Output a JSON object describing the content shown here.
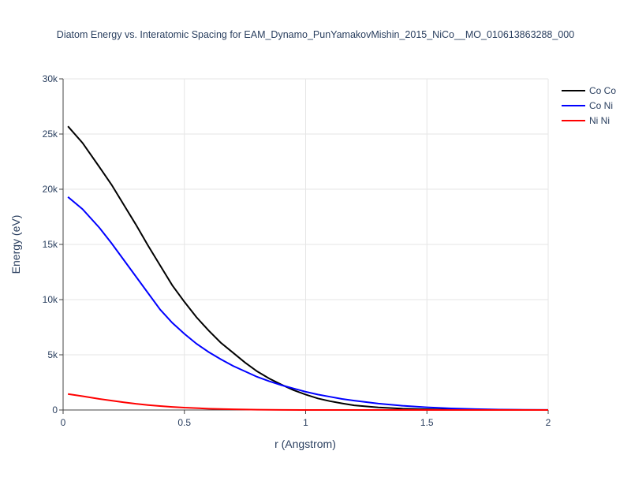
{
  "chart_data": {
    "type": "line",
    "title": "Diatom Energy vs. Interatomic Spacing for EAM_Dynamo_PunYamakovMishin_2015_NiCo__MO_010613863288_000",
    "xlabel": "r (Angstrom)",
    "ylabel": "Energy (eV)",
    "xlim": [
      0,
      2
    ],
    "ylim": [
      0,
      30000
    ],
    "xticks": [
      0,
      0.5,
      1,
      1.5,
      2
    ],
    "xtick_labels": [
      "0",
      "0.5",
      "1",
      "1.5",
      "2"
    ],
    "yticks": [
      0,
      5000,
      10000,
      15000,
      20000,
      25000,
      30000
    ],
    "ytick_labels": [
      "0",
      "5k",
      "10k",
      "15k",
      "20k",
      "25k",
      "30k"
    ],
    "grid": true,
    "legend_position": "top-right",
    "series": [
      {
        "name": "Co Co",
        "color": "#000000",
        "x": [
          0.02,
          0.08,
          0.15,
          0.2,
          0.25,
          0.3,
          0.35,
          0.4,
          0.45,
          0.5,
          0.55,
          0.6,
          0.65,
          0.7,
          0.75,
          0.8,
          0.85,
          0.9,
          0.95,
          1.0,
          1.05,
          1.1,
          1.15,
          1.2,
          1.3,
          1.4,
          1.5,
          1.6,
          1.7,
          1.8,
          1.9,
          2.0
        ],
        "y": [
          25700,
          24200,
          22000,
          20400,
          18600,
          16800,
          14900,
          13100,
          11300,
          9800,
          8400,
          7200,
          6100,
          5200,
          4300,
          3500,
          2850,
          2300,
          1800,
          1400,
          1050,
          800,
          600,
          420,
          230,
          120,
          60,
          30,
          15,
          8,
          4,
          2
        ]
      },
      {
        "name": "Co Ni",
        "color": "#0000ff",
        "x": [
          0.02,
          0.08,
          0.15,
          0.2,
          0.25,
          0.3,
          0.35,
          0.4,
          0.45,
          0.5,
          0.55,
          0.6,
          0.65,
          0.7,
          0.75,
          0.8,
          0.85,
          0.9,
          0.95,
          1.0,
          1.05,
          1.1,
          1.15,
          1.2,
          1.3,
          1.4,
          1.5,
          1.6,
          1.7,
          1.8,
          1.9,
          2.0
        ],
        "y": [
          19300,
          18200,
          16500,
          15100,
          13600,
          12100,
          10600,
          9100,
          7900,
          6900,
          6000,
          5250,
          4600,
          4000,
          3500,
          3000,
          2600,
          2250,
          1950,
          1650,
          1400,
          1200,
          1000,
          850,
          580,
          380,
          240,
          140,
          80,
          40,
          15,
          5
        ]
      },
      {
        "name": "Ni Ni",
        "color": "#ff0000",
        "x": [
          0.02,
          0.08,
          0.15,
          0.2,
          0.25,
          0.3,
          0.35,
          0.4,
          0.45,
          0.5,
          0.6,
          0.7,
          0.8,
          0.9,
          1.0,
          1.2,
          1.4,
          1.6,
          1.8,
          2.0
        ],
        "y": [
          1450,
          1250,
          1000,
          850,
          700,
          560,
          450,
          360,
          280,
          210,
          120,
          60,
          30,
          10,
          0,
          0,
          0,
          0,
          0,
          0
        ]
      }
    ]
  }
}
